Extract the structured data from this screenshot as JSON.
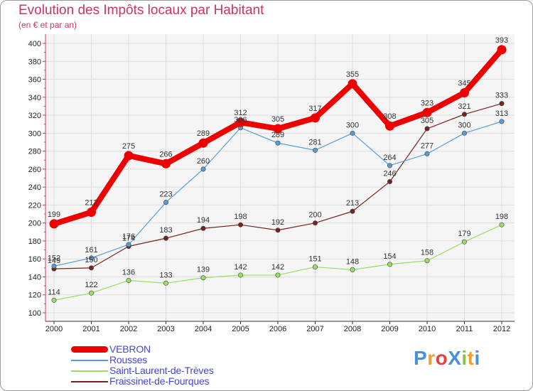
{
  "title": "Evolution des Impôts locaux par Habitant",
  "subtitle": "(en € et par an)",
  "logo": {
    "text": "ProXiti",
    "colors": [
      "#4a90d9",
      "#f0a030",
      "#e84040",
      "#4a90d9",
      "#8bc34a",
      "#f0a030",
      "#4a90d9"
    ]
  },
  "chart_data": {
    "type": "line",
    "title": "Evolution des Impôts locaux par Habitant",
    "ylabel": "(en € et par an)",
    "xlabel": "",
    "categories": [
      "2000",
      "2001",
      "2002",
      "2003",
      "2004",
      "2005",
      "2006",
      "2007",
      "2008",
      "2009",
      "2010",
      "2011",
      "2012"
    ],
    "ylim": [
      100,
      400
    ],
    "yticks": [
      "100",
      "120",
      "140",
      "160",
      "180",
      "200",
      "220",
      "240",
      "260",
      "280",
      "300",
      "320",
      "340",
      "360",
      "380",
      "400"
    ],
    "grid": true,
    "legend_position": "bottom-left",
    "series": [
      {
        "name": "VEBRON",
        "color": "#ee0000",
        "values": [
          199,
          212,
          275,
          266,
          289,
          312,
          305,
          317,
          355,
          308,
          323,
          345,
          393
        ]
      },
      {
        "name": "Rousses",
        "color": "#5b9bd5",
        "values": [
          152,
          161,
          176,
          223,
          260,
          306,
          289,
          281,
          300,
          264,
          277,
          300,
          313
        ]
      },
      {
        "name": "Saint-Laurent-de-Trèves",
        "color": "#99dd66",
        "values": [
          114,
          122,
          136,
          133,
          139,
          142,
          142,
          151,
          148,
          154,
          158,
          179,
          198
        ]
      },
      {
        "name": "Fraissinet-de-Fourques",
        "color": "#772222",
        "values": [
          149,
          150,
          174,
          183,
          194,
          198,
          192,
          200,
          213,
          246,
          305,
          321,
          333
        ]
      }
    ]
  }
}
